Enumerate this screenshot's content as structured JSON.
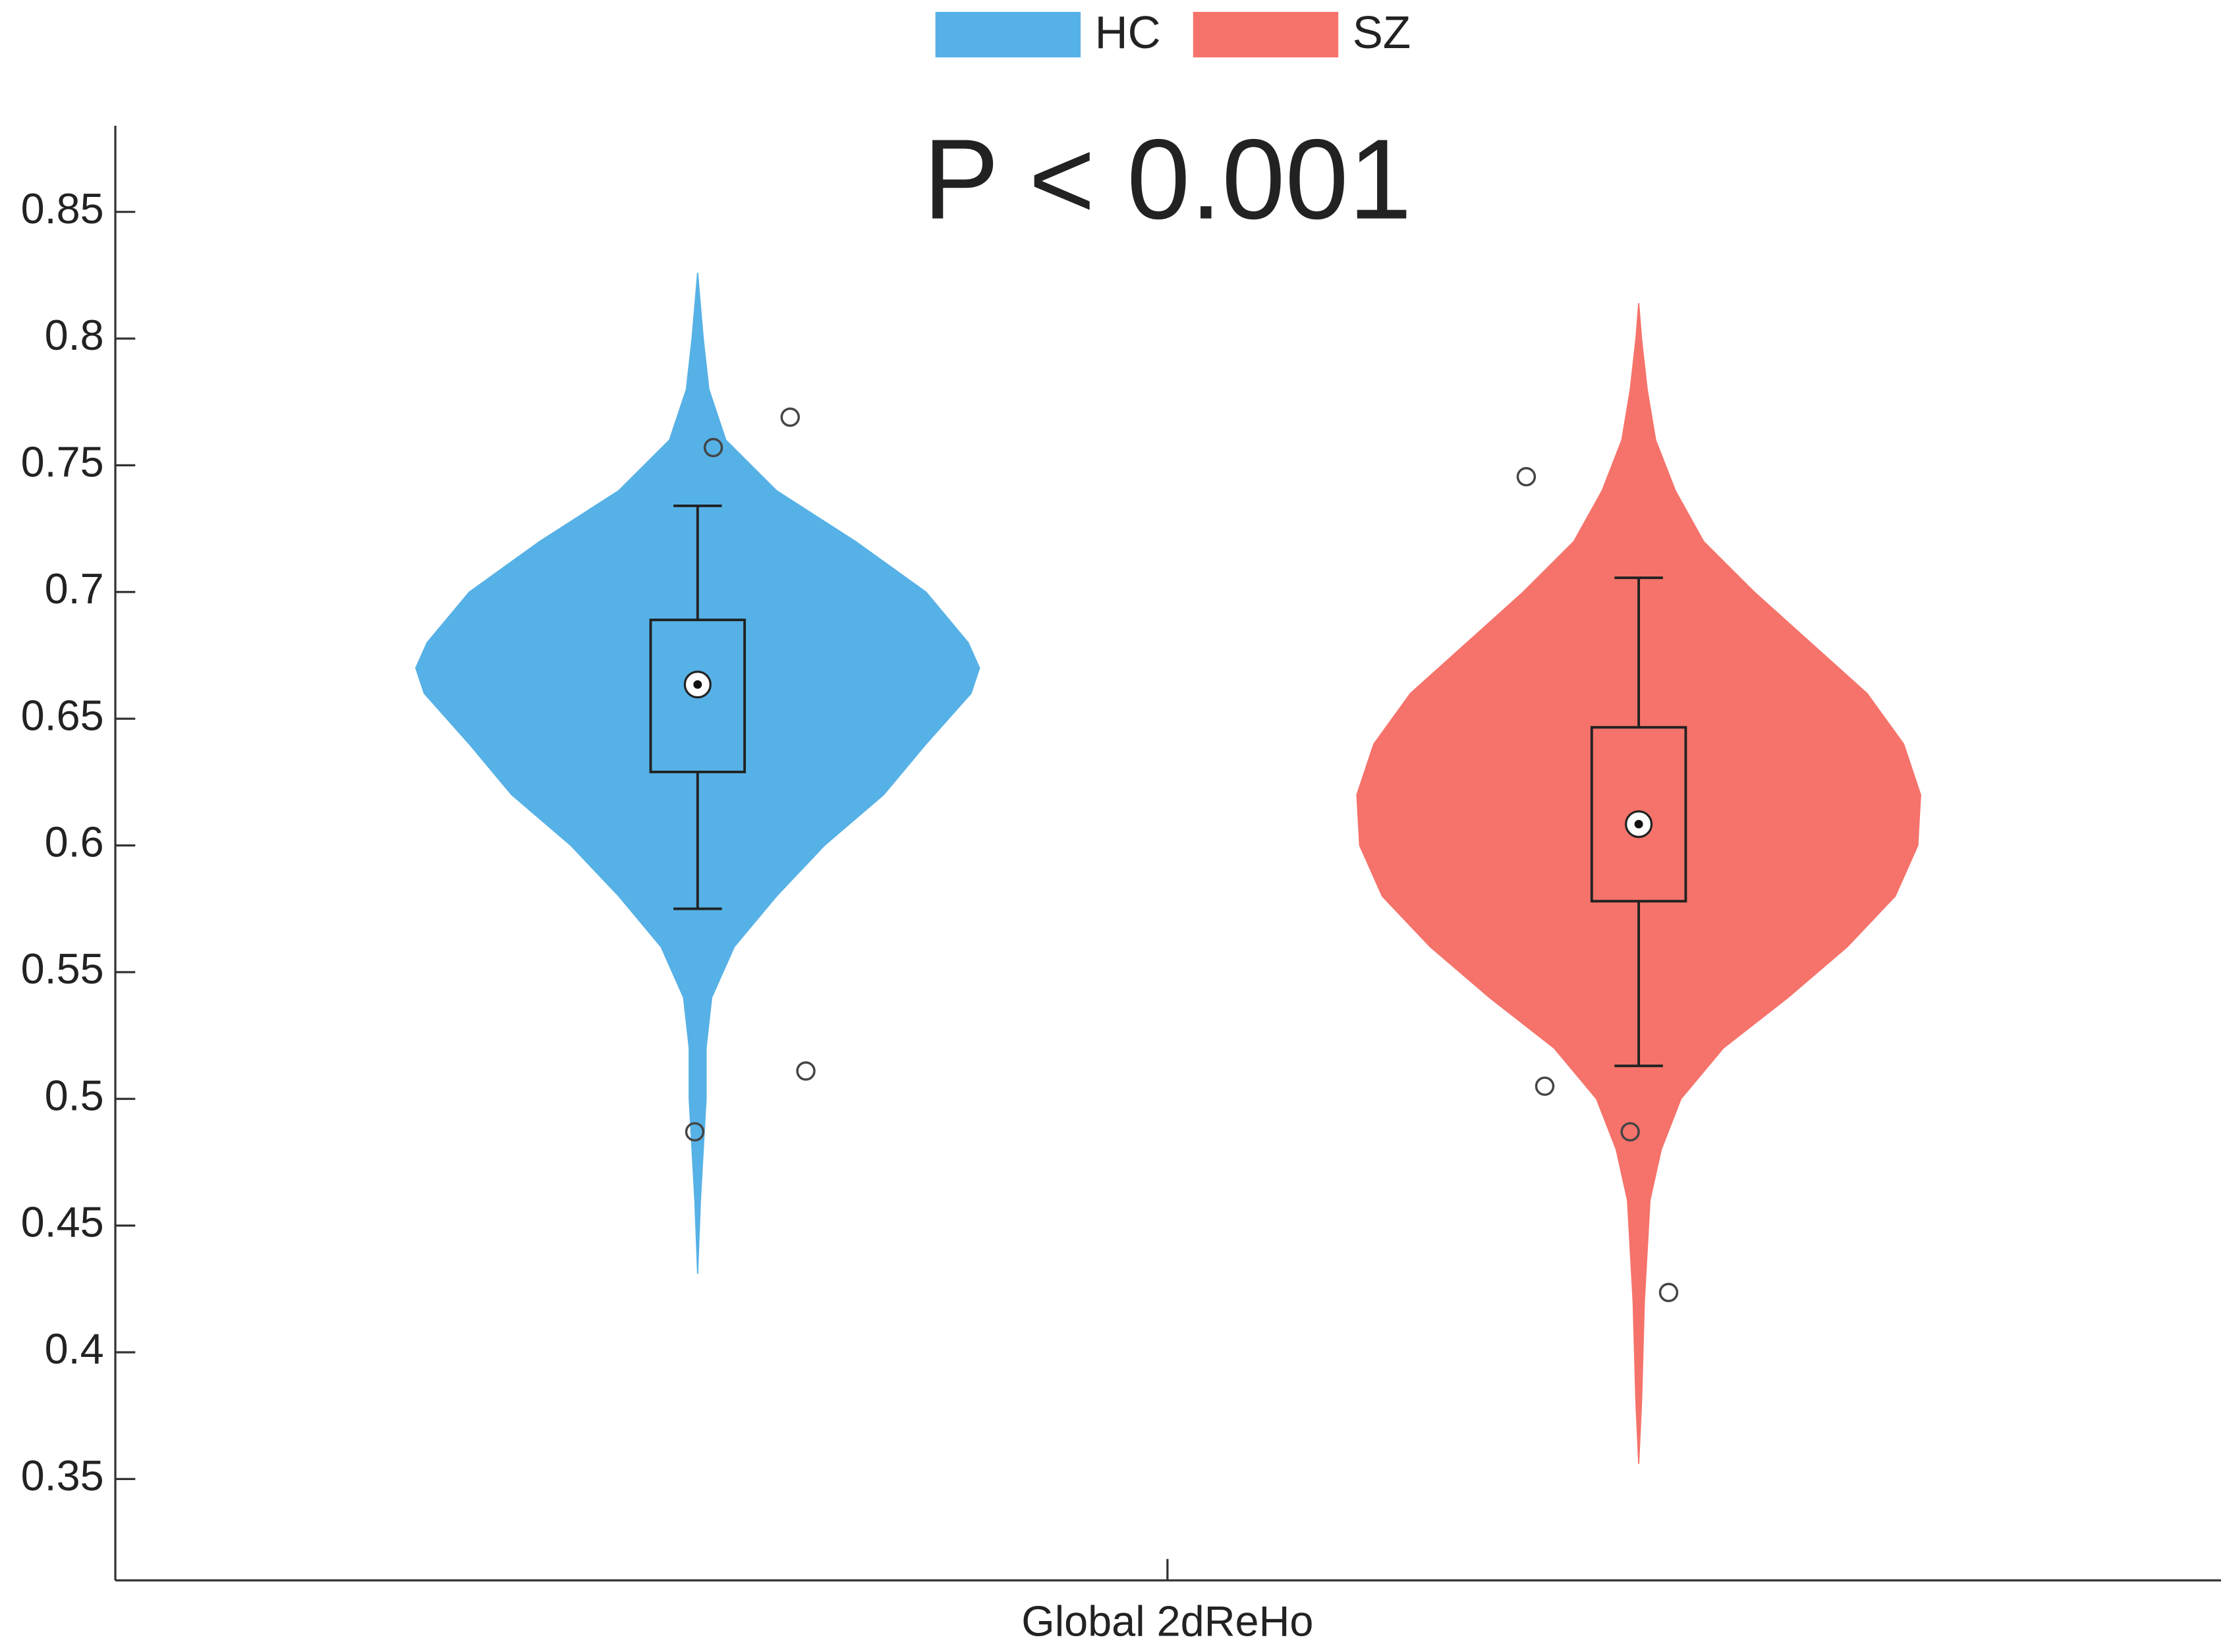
{
  "chart_data": {
    "type": "violin",
    "title": "P < 0.001",
    "categories": [
      "Global 2dReHo"
    ],
    "ylim": [
      0.31,
      0.884
    ],
    "yticks": [
      0.35,
      0.4,
      0.45,
      0.5,
      0.55,
      0.6,
      0.65,
      0.7,
      0.75,
      0.8,
      0.85
    ],
    "legend": "top",
    "series": [
      {
        "name": "HC",
        "color": "#56b1e6",
        "violin_y": [
          0.826,
          0.8,
          0.78,
          0.76,
          0.74,
          0.72,
          0.7,
          0.68,
          0.67,
          0.66,
          0.64,
          0.62,
          0.6,
          0.58,
          0.56,
          0.54,
          0.52,
          0.5,
          0.48,
          0.46,
          0.431
        ],
        "density": [
          0,
          0.02,
          0.04,
          0.1,
          0.28,
          0.56,
          0.81,
          0.96,
          1,
          0.97,
          0.81,
          0.66,
          0.45,
          0.28,
          0.13,
          0.05,
          0.03,
          0.03,
          0.02,
          0.01,
          0
        ],
        "whisker_low": 0.575,
        "q1": 0.629,
        "median": 0.6635,
        "q3": 0.689,
        "whisker_high": 0.734,
        "outliers": [
          0.769,
          0.757,
          0.511,
          0.487
        ]
      },
      {
        "name": "SZ",
        "color": "#f5736b",
        "violin_y": [
          0.814,
          0.8,
          0.78,
          0.76,
          0.74,
          0.72,
          0.7,
          0.68,
          0.66,
          0.64,
          0.62,
          0.6,
          0.58,
          0.56,
          0.54,
          0.52,
          0.5,
          0.48,
          0.46,
          0.44,
          0.42,
          0.4,
          0.38,
          0.356
        ],
        "density": [
          0,
          0.01,
          0.03,
          0.06,
          0.13,
          0.23,
          0.41,
          0.61,
          0.81,
          0.94,
          1,
          0.99,
          0.91,
          0.74,
          0.53,
          0.3,
          0.15,
          0.08,
          0.04,
          0.03,
          0.02,
          0.015,
          0.01,
          0
        ],
        "whisker_low": 0.513,
        "q1": 0.578,
        "median": 0.6084,
        "q3": 0.6466,
        "whisker_high": 0.7056,
        "outliers": [
          0.7455,
          0.505,
          0.487,
          0.4236
        ]
      }
    ]
  }
}
